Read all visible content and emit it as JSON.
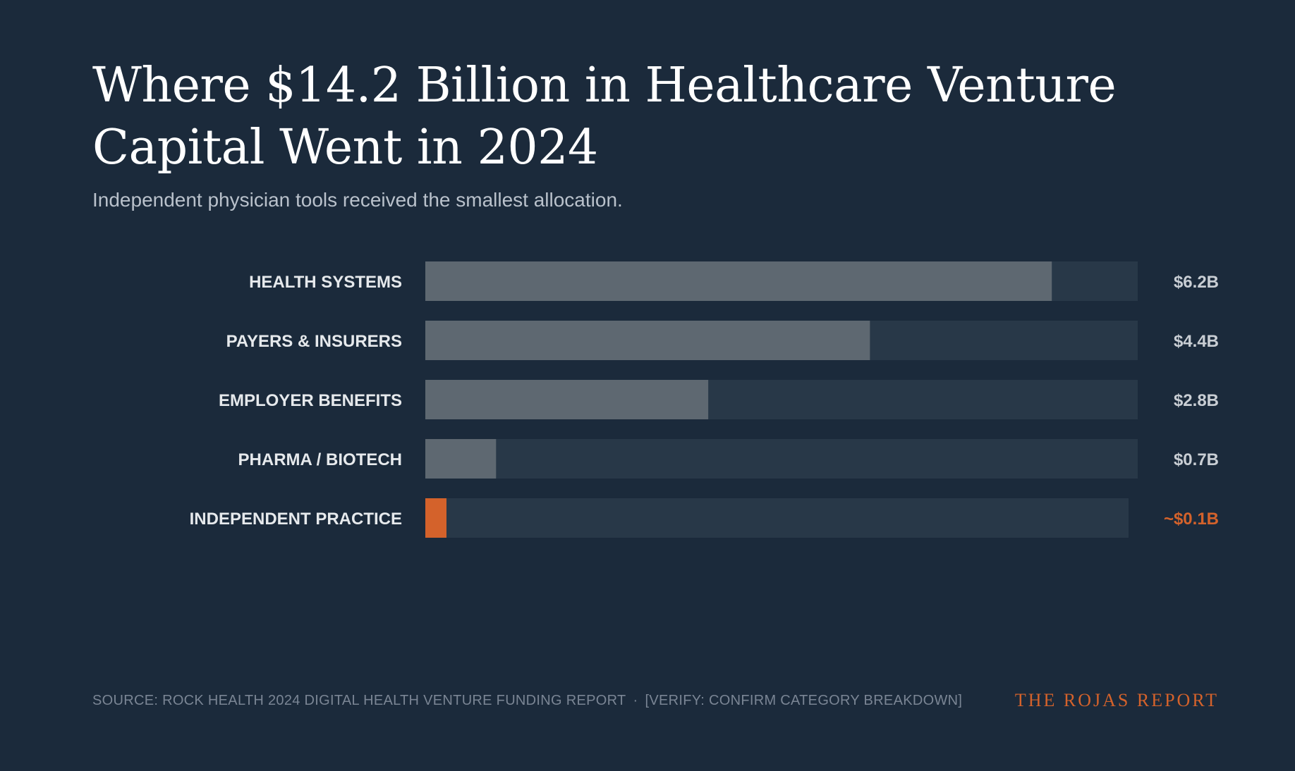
{
  "header": {
    "title": "Where $14.2 Billion in Healthcare Venture Capital Went in 2024",
    "subtitle": "Independent physician tools received the smallest allocation."
  },
  "chart_data": {
    "type": "bar",
    "orientation": "horizontal",
    "title": "Where $14.2 Billion in Healthcare Venture Capital Went in 2024",
    "subtitle": "Independent physician tools received the smallest allocation.",
    "unit": "$B",
    "xlim": [
      0,
      7.05
    ],
    "categories": [
      "HEALTH SYSTEMS",
      "PAYERS & INSURERS",
      "EMPLOYER BENEFITS",
      "PHARMA / BIOTECH",
      "INDEPENDENT PRACTICE"
    ],
    "values": [
      6.2,
      4.4,
      2.8,
      0.7,
      0.1
    ],
    "value_labels": [
      "$6.2B",
      "$4.4B",
      "$2.8B",
      "$0.7B",
      "~$0.1B"
    ],
    "highlight_index": 4,
    "colors": {
      "background": "#1b2a3b",
      "track": "#283848",
      "bar": "#5e6871",
      "highlight": "#d4622b",
      "label": "#e6e9ec",
      "value": "#c9ced4"
    }
  },
  "footer": {
    "source": "SOURCE: ROCK HEALTH 2024 DIGITAL HEALTH VENTURE FUNDING REPORT",
    "separator": "·",
    "note": "[VERIFY: CONFIRM CATEGORY BREAKDOWN]",
    "brand": "THE ROJAS REPORT"
  }
}
